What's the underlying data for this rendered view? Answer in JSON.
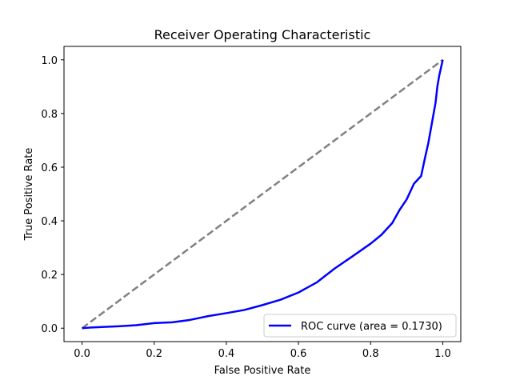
{
  "chart_data": {
    "type": "line",
    "title": "Receiver Operating Characteristic",
    "xlabel": "False Positive Rate",
    "ylabel": "True Positive Rate",
    "xlim": [
      -0.05,
      1.05
    ],
    "ylim": [
      -0.05,
      1.05
    ],
    "xticks": [
      "0.0",
      "0.2",
      "0.4",
      "0.6",
      "0.8",
      "1.0"
    ],
    "yticks": [
      "0.0",
      "0.2",
      "0.4",
      "0.6",
      "0.8",
      "1.0"
    ],
    "grid": false,
    "legend_position": "lower right",
    "series": [
      {
        "name": "ROC curve (area = 0.1730)",
        "color": "#0000ff",
        "style": "solid",
        "x": [
          0.0,
          0.02,
          0.05,
          0.1,
          0.15,
          0.2,
          0.25,
          0.3,
          0.35,
          0.4,
          0.45,
          0.5,
          0.55,
          0.6,
          0.65,
          0.7,
          0.75,
          0.8,
          0.83,
          0.86,
          0.88,
          0.9,
          0.92,
          0.94,
          0.95,
          0.96,
          0.97,
          0.98,
          0.985,
          0.99,
          0.995,
          1.0
        ],
        "y": [
          0.0,
          0.002,
          0.004,
          0.007,
          0.011,
          0.019,
          0.022,
          0.031,
          0.045,
          0.056,
          0.068,
          0.086,
          0.106,
          0.133,
          0.17,
          0.222,
          0.268,
          0.315,
          0.348,
          0.392,
          0.44,
          0.48,
          0.538,
          0.567,
          0.63,
          0.69,
          0.765,
          0.84,
          0.9,
          0.94,
          0.97,
          1.0
        ]
      },
      {
        "name": "",
        "color": "#808080",
        "style": "dashed",
        "x": [
          0.0,
          1.0
        ],
        "y": [
          0.0,
          1.0
        ]
      }
    ]
  }
}
